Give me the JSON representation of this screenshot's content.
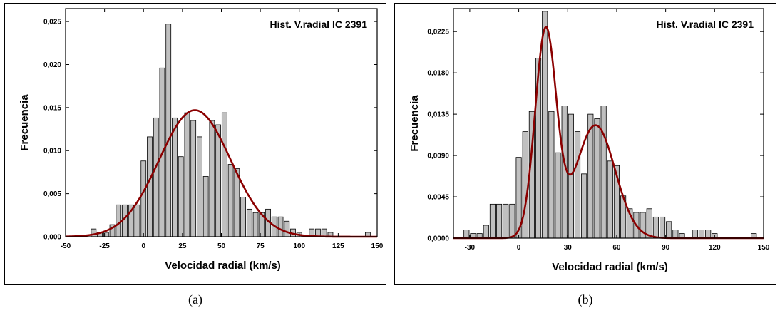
{
  "chart_data": [
    {
      "id": "a",
      "type": "bar",
      "title": "Hist. V.radial IC 2391",
      "xlabel": "Velocidad radial (km/s)",
      "ylabel": "Frecuencia",
      "caption": "(a)",
      "xlim": [
        -50,
        150
      ],
      "ylim": [
        0,
        0.0265
      ],
      "xticks": [
        -50,
        -25,
        0,
        25,
        50,
        75,
        100,
        125,
        150
      ],
      "xtick_labels": [
        "-50",
        "-25",
        "0",
        "25",
        "50",
        "75",
        "100",
        "125",
        "150"
      ],
      "yticks": [
        0,
        0.005,
        0.01,
        0.015,
        0.02,
        0.025
      ],
      "ytick_labels": [
        "0,000",
        "0,005",
        "0,010",
        "0,015",
        "0,020",
        "0,025"
      ],
      "bar_width": 3.2,
      "bar_color": "#c0c0c0",
      "curve_color": "#8b0000",
      "bars": [
        {
          "x": -32,
          "y": 0.0009
        },
        {
          "x": -28,
          "y": 0.0005
        },
        {
          "x": -24,
          "y": 0.0005
        },
        {
          "x": -20,
          "y": 0.0014
        },
        {
          "x": -16,
          "y": 0.0037
        },
        {
          "x": -12,
          "y": 0.0037
        },
        {
          "x": -8,
          "y": 0.0037
        },
        {
          "x": -4,
          "y": 0.0037
        },
        {
          "x": 0,
          "y": 0.0088
        },
        {
          "x": 4,
          "y": 0.0116
        },
        {
          "x": 8,
          "y": 0.0138
        },
        {
          "x": 12,
          "y": 0.0196
        },
        {
          "x": 16,
          "y": 0.0247
        },
        {
          "x": 20,
          "y": 0.0138
        },
        {
          "x": 24,
          "y": 0.0093
        },
        {
          "x": 28,
          "y": 0.0144
        },
        {
          "x": 32,
          "y": 0.0135
        },
        {
          "x": 36,
          "y": 0.0116
        },
        {
          "x": 40,
          "y": 0.007
        },
        {
          "x": 44,
          "y": 0.0135
        },
        {
          "x": 48,
          "y": 0.013
        },
        {
          "x": 52,
          "y": 0.0144
        },
        {
          "x": 56,
          "y": 0.0084
        },
        {
          "x": 60,
          "y": 0.0079
        },
        {
          "x": 64,
          "y": 0.0046
        },
        {
          "x": 68,
          "y": 0.0032
        },
        {
          "x": 72,
          "y": 0.0028
        },
        {
          "x": 76,
          "y": 0.0028
        },
        {
          "x": 80,
          "y": 0.0032
        },
        {
          "x": 84,
          "y": 0.0023
        },
        {
          "x": 88,
          "y": 0.0023
        },
        {
          "x": 92,
          "y": 0.0018
        },
        {
          "x": 96,
          "y": 0.0009
        },
        {
          "x": 100,
          "y": 0.0005
        },
        {
          "x": 108,
          "y": 0.0009
        },
        {
          "x": 112,
          "y": 0.0009
        },
        {
          "x": 116,
          "y": 0.0009
        },
        {
          "x": 120,
          "y": 0.0005
        },
        {
          "x": 144,
          "y": 0.0005
        }
      ],
      "fit": {
        "type": "gaussian",
        "components": [
          {
            "amplitude": 0.0147,
            "mean": 33,
            "sigma": 23
          }
        ]
      }
    },
    {
      "id": "b",
      "type": "bar",
      "title": "Hist. V.radial IC 2391",
      "xlabel": "Velocidad radial (km/s)",
      "ylabel": "Frecuencia",
      "caption": "(b)",
      "xlim": [
        -40,
        150
      ],
      "ylim": [
        0,
        0.025
      ],
      "xticks": [
        -30,
        0,
        30,
        60,
        90,
        120,
        150
      ],
      "xtick_labels": [
        "-30",
        "0",
        "30",
        "60",
        "90",
        "120",
        "150"
      ],
      "yticks": [
        0,
        0.0045,
        0.009,
        0.0135,
        0.018,
        0.0225
      ],
      "ytick_labels": [
        "0,0000",
        "0,0045",
        "0,0090",
        "0,0135",
        "0,0180",
        "0,0225"
      ],
      "bar_width": 3.2,
      "bar_color": "#c0c0c0",
      "curve_color": "#8b0000",
      "bars": [
        {
          "x": -32,
          "y": 0.0009
        },
        {
          "x": -28,
          "y": 0.0005
        },
        {
          "x": -24,
          "y": 0.0005
        },
        {
          "x": -20,
          "y": 0.0014
        },
        {
          "x": -16,
          "y": 0.0037
        },
        {
          "x": -12,
          "y": 0.0037
        },
        {
          "x": -8,
          "y": 0.0037
        },
        {
          "x": -4,
          "y": 0.0037
        },
        {
          "x": 0,
          "y": 0.0088
        },
        {
          "x": 4,
          "y": 0.0116
        },
        {
          "x": 8,
          "y": 0.0138
        },
        {
          "x": 12,
          "y": 0.0196
        },
        {
          "x": 16,
          "y": 0.0247
        },
        {
          "x": 20,
          "y": 0.0138
        },
        {
          "x": 24,
          "y": 0.0093
        },
        {
          "x": 28,
          "y": 0.0144
        },
        {
          "x": 32,
          "y": 0.0135
        },
        {
          "x": 36,
          "y": 0.0116
        },
        {
          "x": 40,
          "y": 0.007
        },
        {
          "x": 44,
          "y": 0.0135
        },
        {
          "x": 48,
          "y": 0.013
        },
        {
          "x": 52,
          "y": 0.0144
        },
        {
          "x": 56,
          "y": 0.0084
        },
        {
          "x": 60,
          "y": 0.0079
        },
        {
          "x": 64,
          "y": 0.0046
        },
        {
          "x": 68,
          "y": 0.0032
        },
        {
          "x": 72,
          "y": 0.0028
        },
        {
          "x": 76,
          "y": 0.0028
        },
        {
          "x": 80,
          "y": 0.0032
        },
        {
          "x": 84,
          "y": 0.0023
        },
        {
          "x": 88,
          "y": 0.0023
        },
        {
          "x": 92,
          "y": 0.0018
        },
        {
          "x": 96,
          "y": 0.0009
        },
        {
          "x": 100,
          "y": 0.0005
        },
        {
          "x": 108,
          "y": 0.0009
        },
        {
          "x": 112,
          "y": 0.0009
        },
        {
          "x": 116,
          "y": 0.0009
        },
        {
          "x": 120,
          "y": 0.0005
        },
        {
          "x": 144,
          "y": 0.0005
        }
      ],
      "fit": {
        "type": "gaussian",
        "components": [
          {
            "amplitude": 0.0225,
            "mean": 16.5,
            "sigma": 6.5
          },
          {
            "amplitude": 0.0123,
            "mean": 47,
            "sigma": 12
          }
        ]
      }
    }
  ]
}
